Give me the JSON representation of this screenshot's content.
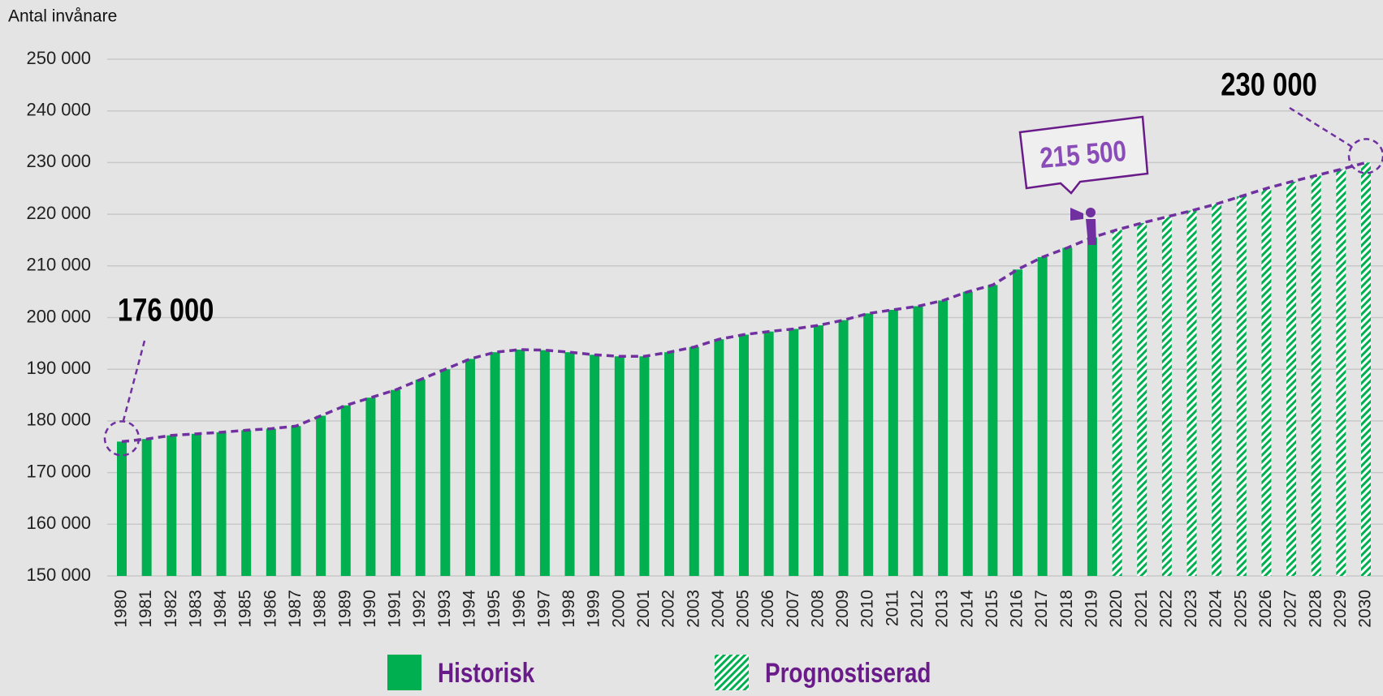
{
  "chart_data": {
    "type": "bar",
    "y_label": "Antal invånare",
    "categories": [
      "1980",
      "1981",
      "1982",
      "1983",
      "1984",
      "1985",
      "1986",
      "1987",
      "1988",
      "1989",
      "1990",
      "1991",
      "1992",
      "1993",
      "1994",
      "1995",
      "1996",
      "1997",
      "1998",
      "1999",
      "2000",
      "2001",
      "2002",
      "2003",
      "2004",
      "2005",
      "2006",
      "2007",
      "2008",
      "2009",
      "2010",
      "2011",
      "2012",
      "2013",
      "2014",
      "2015",
      "2016",
      "2017",
      "2018",
      "2019",
      "2020",
      "2021",
      "2022",
      "2023",
      "2024",
      "2025",
      "2026",
      "2027",
      "2028",
      "2029",
      "2030"
    ],
    "series": [
      {
        "name": "Historisk",
        "color": "#00b050",
        "hatch": false,
        "values": [
          176000,
          176500,
          177200,
          177500,
          177800,
          178200,
          178500,
          179000,
          181000,
          183000,
          184500,
          186000,
          188000,
          190000,
          192000,
          193300,
          193800,
          193700,
          193300,
          192800,
          192500,
          192500,
          193300,
          194300,
          195800,
          196700,
          197300,
          197800,
          198500,
          199500,
          200800,
          201500,
          202200,
          203300,
          205000,
          206300,
          209300,
          211700,
          213500,
          215500,
          null,
          null,
          null,
          null,
          null,
          null,
          null,
          null,
          null,
          null,
          null
        ]
      },
      {
        "name": "Prognostiserad",
        "color": "#00b050",
        "hatch": true,
        "values": [
          null,
          null,
          null,
          null,
          null,
          null,
          null,
          null,
          null,
          null,
          null,
          null,
          null,
          null,
          null,
          null,
          null,
          null,
          null,
          null,
          null,
          null,
          null,
          null,
          null,
          null,
          null,
          null,
          null,
          null,
          null,
          null,
          null,
          null,
          null,
          null,
          null,
          null,
          null,
          null,
          217000,
          218300,
          219500,
          220700,
          222000,
          223500,
          225000,
          226300,
          227500,
          228700,
          230000
        ]
      }
    ],
    "trend_color": "#7030a0",
    "annotations": [
      "176 000",
      "215 500",
      "230 000"
    ],
    "ylim": [
      150000,
      250000
    ],
    "yticks": [
      {
        "value": 150000,
        "label": "150 000"
      },
      {
        "value": 160000,
        "label": "160 000"
      },
      {
        "value": 170000,
        "label": "170 000"
      },
      {
        "value": 180000,
        "label": "180 000"
      },
      {
        "value": 190000,
        "label": "190 000"
      },
      {
        "value": 200000,
        "label": "200 000"
      },
      {
        "value": 210000,
        "label": "210 000"
      },
      {
        "value": 220000,
        "label": "220 000"
      },
      {
        "value": 230000,
        "label": "230 000"
      },
      {
        "value": 240000,
        "label": "240 000"
      },
      {
        "value": 250000,
        "label": "250 000"
      }
    ],
    "grid": true
  }
}
